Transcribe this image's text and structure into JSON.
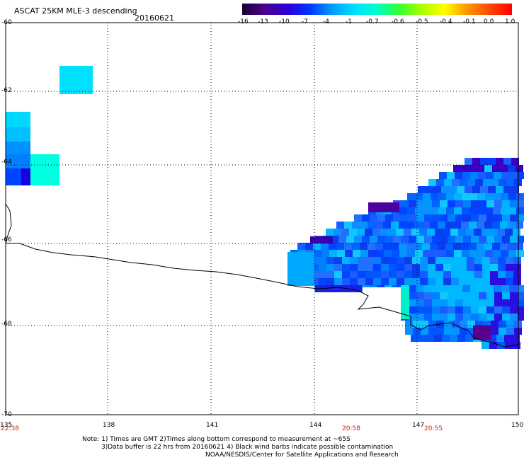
{
  "header": {
    "title": "ASCAT 25KM MLE-3 descending",
    "date": "20160621"
  },
  "colorbar": {
    "labels": [
      "-16",
      "-13",
      "-10",
      "-7",
      "-4",
      "-1",
      "-0.7",
      "-0.6",
      "-0.5",
      "-0.4",
      "-0.1",
      "0.0",
      "1.0"
    ],
    "colors": [
      "#1a0033",
      "#4a008c",
      "#2a00d6",
      "#0033ff",
      "#0099ff",
      "#00e0ff",
      "#00ffc8",
      "#33ff33",
      "#b0ff00",
      "#ffff00",
      "#ff9900",
      "#ff4400",
      "#ff0000"
    ]
  },
  "axes": {
    "lat_labels": [
      "-60",
      "-62",
      "-64",
      "-66",
      "-68",
      "-70"
    ],
    "lon_labels": [
      "135",
      "138",
      "141",
      "144",
      "147",
      "150"
    ]
  },
  "times": [
    "22:38",
    "20:58",
    "20:55"
  ],
  "notes": {
    "line1": "Note: 1) Times are GMT 2)Times along bottom correspond to measurement at ~65S",
    "line2": "3)Data buffer is 22 hrs from 20160621 4) Black wind barbs indicate possible contamination",
    "line3": "NOAA/NESDIS/Center for Satellite Applications and Research"
  }
}
